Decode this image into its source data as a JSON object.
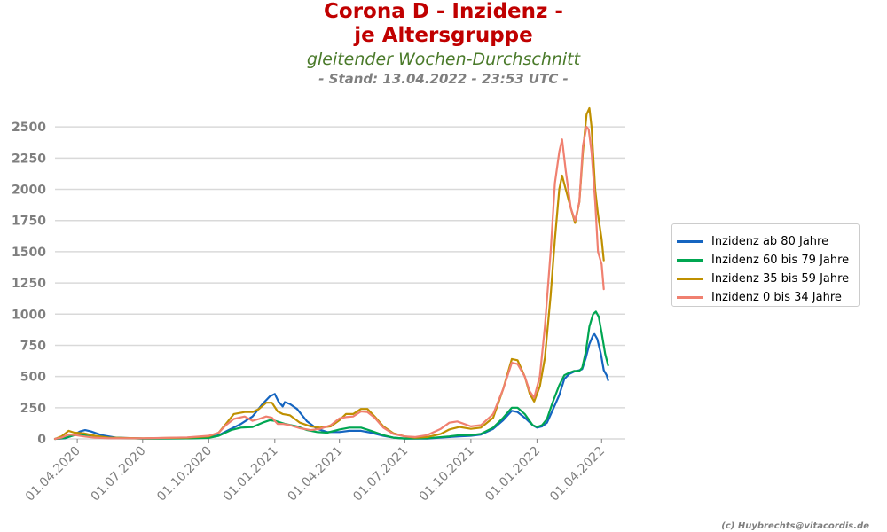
{
  "header": {
    "title_line1": "Corona D - Inzidenz -",
    "title_line2": "je Altersgruppe",
    "subtitle": "gleitender Wochen-Durchschnitt",
    "stand": "- Stand: 13.04.2022 - 23:53 UTC -"
  },
  "credit": "(c) Huybrechts@vitacordis.de",
  "colors": {
    "title": "#c00000",
    "subtitle": "#4a7a2a",
    "axis_text": "#7f7f7f",
    "grid": "#d9d9d9"
  },
  "chart_data": {
    "type": "line",
    "title": "Corona D - Inzidenz - je Altersgruppe",
    "subtitle": "gleitender Wochen-Durchschnitt",
    "xlabel": "",
    "ylabel": "",
    "ylim": [
      0,
      2700
    ],
    "xlim": [
      "2020-03-01",
      "2022-05-04"
    ],
    "yticks": [
      0,
      250,
      500,
      750,
      1000,
      1250,
      1500,
      1750,
      2000,
      2250,
      2500
    ],
    "ytick_labels": [
      "0",
      "250",
      "500",
      "750",
      "1000",
      "1250",
      "1500",
      "1750",
      "2000",
      "2250",
      "2500"
    ],
    "xticks": [
      "2020-04-01",
      "2020-07-01",
      "2020-10-01",
      "2021-01-01",
      "2021-04-01",
      "2021-07-01",
      "2021-10-01",
      "2022-01-01",
      "2022-04-01"
    ],
    "xtick_labels": [
      "01.04.2020",
      "01.07.2020",
      "01.10.2020",
      "01.01.2021",
      "01.04.2021",
      "01.07.2021",
      "01.10.2021",
      "01.01.2022",
      "01.04.2022"
    ],
    "grid": "horizontal",
    "legend_position": "right",
    "series": [
      {
        "name": "Inzidenz ab 80 Jahre",
        "color": "#1565c0",
        "points": [
          [
            "2020-03-01",
            0
          ],
          [
            "2020-03-15",
            5
          ],
          [
            "2020-03-25",
            25
          ],
          [
            "2020-04-05",
            60
          ],
          [
            "2020-04-12",
            70
          ],
          [
            "2020-04-20",
            60
          ],
          [
            "2020-05-05",
            30
          ],
          [
            "2020-05-25",
            10
          ],
          [
            "2020-07-01",
            3
          ],
          [
            "2020-09-01",
            4
          ],
          [
            "2020-10-01",
            10
          ],
          [
            "2020-10-15",
            30
          ],
          [
            "2020-11-01",
            80
          ],
          [
            "2020-11-15",
            120
          ],
          [
            "2020-12-01",
            180
          ],
          [
            "2020-12-15",
            280
          ],
          [
            "2020-12-25",
            340
          ],
          [
            "2021-01-01",
            360
          ],
          [
            "2021-01-06",
            300
          ],
          [
            "2021-01-12",
            260
          ],
          [
            "2021-01-15",
            295
          ],
          [
            "2021-01-22",
            280
          ],
          [
            "2021-02-01",
            240
          ],
          [
            "2021-02-15",
            140
          ],
          [
            "2021-03-01",
            80
          ],
          [
            "2021-03-15",
            55
          ],
          [
            "2021-04-01",
            55
          ],
          [
            "2021-04-15",
            65
          ],
          [
            "2021-05-01",
            65
          ],
          [
            "2021-05-15",
            50
          ],
          [
            "2021-06-01",
            25
          ],
          [
            "2021-06-15",
            10
          ],
          [
            "2021-07-01",
            3
          ],
          [
            "2021-08-01",
            3
          ],
          [
            "2021-09-01",
            15
          ],
          [
            "2021-09-15",
            20
          ],
          [
            "2021-10-01",
            25
          ],
          [
            "2021-10-15",
            35
          ],
          [
            "2021-11-01",
            80
          ],
          [
            "2021-11-15",
            150
          ],
          [
            "2021-11-27",
            225
          ],
          [
            "2021-12-05",
            215
          ],
          [
            "2021-12-15",
            170
          ],
          [
            "2021-12-26",
            110
          ],
          [
            "2022-01-01",
            90
          ],
          [
            "2022-01-08",
            100
          ],
          [
            "2022-01-15",
            130
          ],
          [
            "2022-01-22",
            220
          ],
          [
            "2022-02-01",
            350
          ],
          [
            "2022-02-08",
            480
          ],
          [
            "2022-02-15",
            520
          ],
          [
            "2022-02-22",
            540
          ],
          [
            "2022-03-01",
            550
          ],
          [
            "2022-03-05",
            560
          ],
          [
            "2022-03-10",
            650
          ],
          [
            "2022-03-15",
            760
          ],
          [
            "2022-03-20",
            830
          ],
          [
            "2022-03-22",
            840
          ],
          [
            "2022-03-26",
            800
          ],
          [
            "2022-03-31",
            680
          ],
          [
            "2022-04-04",
            550
          ],
          [
            "2022-04-08",
            510
          ],
          [
            "2022-04-10",
            470
          ]
        ]
      },
      {
        "name": "Inzidenz 60 bis 79 Jahre",
        "color": "#00a651",
        "points": [
          [
            "2020-03-01",
            0
          ],
          [
            "2020-03-15",
            8
          ],
          [
            "2020-03-28",
            30
          ],
          [
            "2020-04-10",
            35
          ],
          [
            "2020-04-25",
            25
          ],
          [
            "2020-05-15",
            10
          ],
          [
            "2020-07-01",
            3
          ],
          [
            "2020-09-01",
            4
          ],
          [
            "2020-10-01",
            8
          ],
          [
            "2020-10-15",
            25
          ],
          [
            "2020-11-01",
            70
          ],
          [
            "2020-11-15",
            90
          ],
          [
            "2020-12-01",
            95
          ],
          [
            "2020-12-15",
            130
          ],
          [
            "2020-12-25",
            150
          ],
          [
            "2021-01-01",
            145
          ],
          [
            "2021-01-15",
            120
          ],
          [
            "2021-02-01",
            100
          ],
          [
            "2021-02-15",
            70
          ],
          [
            "2021-03-01",
            55
          ],
          [
            "2021-03-15",
            50
          ],
          [
            "2021-04-01",
            75
          ],
          [
            "2021-04-15",
            90
          ],
          [
            "2021-05-01",
            90
          ],
          [
            "2021-05-15",
            65
          ],
          [
            "2021-06-01",
            30
          ],
          [
            "2021-06-15",
            10
          ],
          [
            "2021-07-01",
            3
          ],
          [
            "2021-08-01",
            5
          ],
          [
            "2021-09-01",
            20
          ],
          [
            "2021-09-15",
            30
          ],
          [
            "2021-10-01",
            30
          ],
          [
            "2021-10-15",
            40
          ],
          [
            "2021-11-01",
            90
          ],
          [
            "2021-11-15",
            170
          ],
          [
            "2021-11-27",
            250
          ],
          [
            "2021-12-05",
            250
          ],
          [
            "2021-12-15",
            200
          ],
          [
            "2021-12-26",
            110
          ],
          [
            "2022-01-01",
            95
          ],
          [
            "2022-01-08",
            110
          ],
          [
            "2022-01-15",
            160
          ],
          [
            "2022-01-22",
            280
          ],
          [
            "2022-02-01",
            430
          ],
          [
            "2022-02-08",
            510
          ],
          [
            "2022-02-15",
            530
          ],
          [
            "2022-02-22",
            545
          ],
          [
            "2022-03-01",
            545
          ],
          [
            "2022-03-05",
            570
          ],
          [
            "2022-03-10",
            700
          ],
          [
            "2022-03-15",
            900
          ],
          [
            "2022-03-20",
            1000
          ],
          [
            "2022-03-24",
            1020
          ],
          [
            "2022-03-28",
            980
          ],
          [
            "2022-04-01",
            850
          ],
          [
            "2022-04-06",
            680
          ],
          [
            "2022-04-10",
            590
          ]
        ]
      },
      {
        "name": "Inzidenz 35 bis 59 Jahre",
        "color": "#bf9000",
        "points": [
          [
            "2020-03-01",
            0
          ],
          [
            "2020-03-10",
            20
          ],
          [
            "2020-03-20",
            65
          ],
          [
            "2020-03-28",
            50
          ],
          [
            "2020-04-10",
            45
          ],
          [
            "2020-04-25",
            25
          ],
          [
            "2020-05-15",
            10
          ],
          [
            "2020-07-01",
            5
          ],
          [
            "2020-09-01",
            10
          ],
          [
            "2020-10-01",
            20
          ],
          [
            "2020-10-15",
            50
          ],
          [
            "2020-10-25",
            120
          ],
          [
            "2020-11-05",
            200
          ],
          [
            "2020-11-20",
            215
          ],
          [
            "2020-12-01",
            215
          ],
          [
            "2020-12-10",
            240
          ],
          [
            "2020-12-20",
            290
          ],
          [
            "2020-12-28",
            290
          ],
          [
            "2021-01-05",
            220
          ],
          [
            "2021-01-12",
            200
          ],
          [
            "2021-01-22",
            190
          ],
          [
            "2021-02-05",
            130
          ],
          [
            "2021-02-20",
            100
          ],
          [
            "2021-03-05",
            90
          ],
          [
            "2021-03-20",
            100
          ],
          [
            "2021-04-01",
            150
          ],
          [
            "2021-04-10",
            200
          ],
          [
            "2021-04-20",
            200
          ],
          [
            "2021-05-01",
            240
          ],
          [
            "2021-05-10",
            240
          ],
          [
            "2021-05-20",
            180
          ],
          [
            "2021-06-01",
            100
          ],
          [
            "2021-06-15",
            45
          ],
          [
            "2021-07-01",
            20
          ],
          [
            "2021-07-15",
            10
          ],
          [
            "2021-08-01",
            15
          ],
          [
            "2021-08-20",
            40
          ],
          [
            "2021-09-01",
            75
          ],
          [
            "2021-09-15",
            95
          ],
          [
            "2021-10-01",
            80
          ],
          [
            "2021-10-15",
            90
          ],
          [
            "2021-11-01",
            170
          ],
          [
            "2021-11-15",
            400
          ],
          [
            "2021-11-27",
            640
          ],
          [
            "2021-12-05",
            630
          ],
          [
            "2021-12-15",
            500
          ],
          [
            "2021-12-22",
            360
          ],
          [
            "2021-12-28",
            300
          ],
          [
            "2022-01-05",
            420
          ],
          [
            "2022-01-12",
            650
          ],
          [
            "2022-01-20",
            1150
          ],
          [
            "2022-01-26",
            1600
          ],
          [
            "2022-02-01",
            2000
          ],
          [
            "2022-02-05",
            2110
          ],
          [
            "2022-02-10",
            2000
          ],
          [
            "2022-02-17",
            1850
          ],
          [
            "2022-02-23",
            1730
          ],
          [
            "2022-03-01",
            1900
          ],
          [
            "2022-03-06",
            2300
          ],
          [
            "2022-03-11",
            2600
          ],
          [
            "2022-03-15",
            2650
          ],
          [
            "2022-03-18",
            2500
          ],
          [
            "2022-03-23",
            2000
          ],
          [
            "2022-03-27",
            1800
          ],
          [
            "2022-04-01",
            1600
          ],
          [
            "2022-04-04",
            1430
          ]
        ]
      },
      {
        "name": "Inzidenz 0 bis 34 Jahre",
        "color": "#f08070",
        "points": [
          [
            "2020-03-01",
            0
          ],
          [
            "2020-03-10",
            10
          ],
          [
            "2020-03-20",
            35
          ],
          [
            "2020-03-30",
            30
          ],
          [
            "2020-04-10",
            20
          ],
          [
            "2020-04-25",
            10
          ],
          [
            "2020-05-15",
            5
          ],
          [
            "2020-07-01",
            5
          ],
          [
            "2020-09-01",
            12
          ],
          [
            "2020-10-01",
            25
          ],
          [
            "2020-10-15",
            50
          ],
          [
            "2020-10-25",
            110
          ],
          [
            "2020-11-05",
            160
          ],
          [
            "2020-11-20",
            180
          ],
          [
            "2020-12-01",
            145
          ],
          [
            "2020-12-10",
            160
          ],
          [
            "2020-12-20",
            180
          ],
          [
            "2020-12-28",
            170
          ],
          [
            "2021-01-05",
            120
          ],
          [
            "2021-01-12",
            120
          ],
          [
            "2021-01-22",
            110
          ],
          [
            "2021-02-05",
            85
          ],
          [
            "2021-02-20",
            70
          ],
          [
            "2021-03-05",
            80
          ],
          [
            "2021-03-20",
            110
          ],
          [
            "2021-04-01",
            165
          ],
          [
            "2021-04-10",
            175
          ],
          [
            "2021-04-20",
            180
          ],
          [
            "2021-05-01",
            220
          ],
          [
            "2021-05-10",
            215
          ],
          [
            "2021-05-20",
            170
          ],
          [
            "2021-06-01",
            90
          ],
          [
            "2021-06-15",
            40
          ],
          [
            "2021-07-01",
            20
          ],
          [
            "2021-07-15",
            15
          ],
          [
            "2021-08-01",
            30
          ],
          [
            "2021-08-20",
            80
          ],
          [
            "2021-09-01",
            130
          ],
          [
            "2021-09-12",
            140
          ],
          [
            "2021-10-01",
            100
          ],
          [
            "2021-10-15",
            110
          ],
          [
            "2021-11-01",
            200
          ],
          [
            "2021-11-15",
            400
          ],
          [
            "2021-11-27",
            610
          ],
          [
            "2021-12-05",
            600
          ],
          [
            "2021-12-15",
            500
          ],
          [
            "2021-12-22",
            380
          ],
          [
            "2021-12-28",
            330
          ],
          [
            "2022-01-05",
            500
          ],
          [
            "2022-01-12",
            900
          ],
          [
            "2022-01-20",
            1500
          ],
          [
            "2022-01-26",
            2050
          ],
          [
            "2022-02-01",
            2300
          ],
          [
            "2022-02-05",
            2400
          ],
          [
            "2022-02-10",
            2150
          ],
          [
            "2022-02-17",
            1850
          ],
          [
            "2022-02-23",
            1750
          ],
          [
            "2022-03-01",
            1900
          ],
          [
            "2022-03-06",
            2350
          ],
          [
            "2022-03-11",
            2500
          ],
          [
            "2022-03-14",
            2480
          ],
          [
            "2022-03-18",
            2300
          ],
          [
            "2022-03-23",
            1900
          ],
          [
            "2022-03-27",
            1500
          ],
          [
            "2022-04-01",
            1400
          ],
          [
            "2022-04-04",
            1200
          ]
        ]
      }
    ]
  }
}
